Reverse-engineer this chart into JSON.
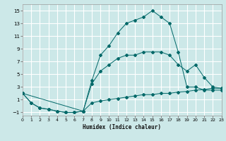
{
  "xlabel": "Humidex (Indice chaleur)",
  "background_color": "#cce8e8",
  "grid_color": "#ffffff",
  "line_color": "#006868",
  "xlim": [
    0,
    23
  ],
  "ylim": [
    -1.5,
    16.0
  ],
  "xticks": [
    0,
    1,
    2,
    3,
    4,
    5,
    6,
    7,
    8,
    9,
    10,
    11,
    12,
    13,
    14,
    15,
    16,
    17,
    18,
    19,
    20,
    21,
    22,
    23
  ],
  "yticks": [
    -1,
    1,
    3,
    5,
    7,
    9,
    11,
    13,
    15
  ],
  "line1_x": [
    0,
    1,
    2,
    3,
    4,
    5,
    6,
    7,
    8,
    9,
    10,
    11,
    12,
    13,
    14,
    15,
    16,
    17,
    18,
    19,
    20,
    21,
    22,
    23
  ],
  "line1_y": [
    2.0,
    0.5,
    -0.3,
    -0.5,
    -0.8,
    -1.0,
    -1.0,
    -0.8,
    4.0,
    8.0,
    9.5,
    11.5,
    13.0,
    13.5,
    14.0,
    15.0,
    14.0,
    13.0,
    8.5,
    3.0,
    3.0,
    2.5,
    2.5,
    2.5
  ],
  "line2_x": [
    0,
    7,
    8,
    9,
    10,
    11,
    12,
    13,
    14,
    15,
    16,
    17,
    18,
    19,
    20,
    21,
    22,
    23
  ],
  "line2_y": [
    2.0,
    -0.8,
    3.5,
    5.5,
    6.5,
    7.5,
    8.0,
    8.0,
    8.5,
    8.5,
    8.5,
    8.0,
    6.5,
    5.5,
    6.5,
    4.5,
    3.0,
    2.8
  ],
  "line3_x": [
    0,
    1,
    2,
    3,
    4,
    5,
    6,
    7,
    8,
    9,
    10,
    11,
    12,
    13,
    14,
    15,
    16,
    17,
    18,
    19,
    20,
    21,
    22,
    23
  ],
  "line3_y": [
    2.0,
    0.5,
    -0.3,
    -0.5,
    -0.8,
    -1.0,
    -1.0,
    -0.8,
    0.5,
    0.8,
    1.0,
    1.2,
    1.4,
    1.6,
    1.8,
    1.8,
    2.0,
    2.0,
    2.2,
    2.3,
    2.5,
    2.6,
    2.8,
    2.8
  ]
}
